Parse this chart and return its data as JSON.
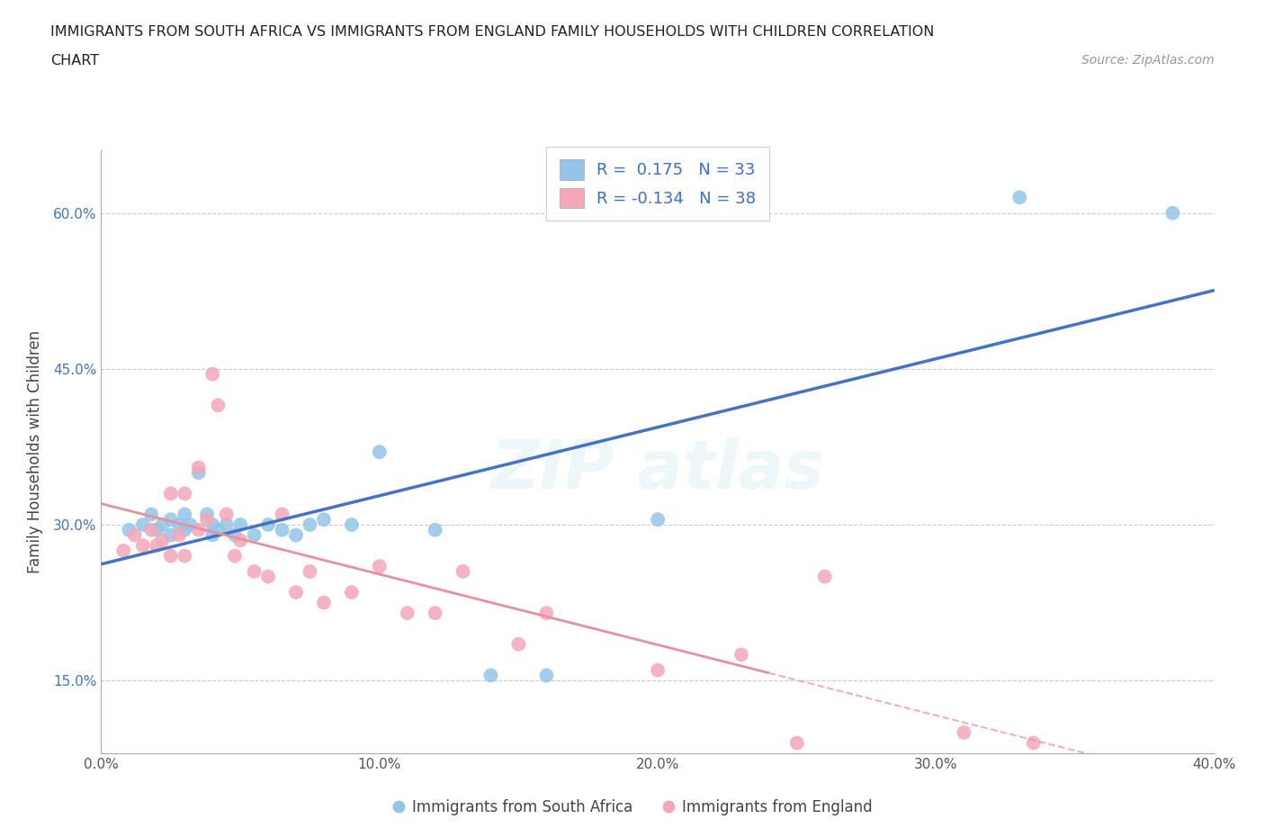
{
  "title_line1": "IMMIGRANTS FROM SOUTH AFRICA VS IMMIGRANTS FROM ENGLAND FAMILY HOUSEHOLDS WITH CHILDREN CORRELATION",
  "title_line2": "CHART",
  "source": "Source: ZipAtlas.com",
  "ylabel": "Family Households with Children",
  "xlim": [
    0.0,
    0.4
  ],
  "ylim": [
    0.08,
    0.66
  ],
  "yticks": [
    0.15,
    0.3,
    0.45,
    0.6
  ],
  "ytick_labels": [
    "15.0%",
    "30.0%",
    "45.0%",
    "60.0%"
  ],
  "xticks": [
    0.0,
    0.1,
    0.2,
    0.3,
    0.4
  ],
  "xtick_labels": [
    "0.0%",
    "10.0%",
    "20.0%",
    "30.0%",
    "40.0%"
  ],
  "blue_R": 0.175,
  "blue_N": 33,
  "pink_R": -0.134,
  "pink_N": 38,
  "blue_color": "#92C5E8",
  "pink_color": "#F4A7B9",
  "blue_line_color": "#4472C4",
  "pink_line_color": "#E8909E",
  "background_color": "#FFFFFF",
  "grid_color": "#CCCCCC",
  "blue_scatter_x": [
    0.01,
    0.015,
    0.018,
    0.02,
    0.022,
    0.025,
    0.025,
    0.028,
    0.03,
    0.03,
    0.032,
    0.035,
    0.038,
    0.04,
    0.04,
    0.042,
    0.045,
    0.048,
    0.05,
    0.055,
    0.06,
    0.065,
    0.07,
    0.075,
    0.08,
    0.09,
    0.1,
    0.12,
    0.14,
    0.16,
    0.2,
    0.33,
    0.385
  ],
  "blue_scatter_y": [
    0.295,
    0.3,
    0.31,
    0.295,
    0.3,
    0.305,
    0.29,
    0.3,
    0.295,
    0.31,
    0.3,
    0.35,
    0.31,
    0.3,
    0.29,
    0.295,
    0.3,
    0.29,
    0.3,
    0.29,
    0.3,
    0.295,
    0.29,
    0.3,
    0.305,
    0.3,
    0.37,
    0.295,
    0.155,
    0.155,
    0.305,
    0.615,
    0.6
  ],
  "pink_scatter_x": [
    0.008,
    0.012,
    0.015,
    0.018,
    0.02,
    0.022,
    0.025,
    0.025,
    0.028,
    0.03,
    0.03,
    0.035,
    0.035,
    0.038,
    0.04,
    0.042,
    0.045,
    0.048,
    0.05,
    0.055,
    0.06,
    0.065,
    0.07,
    0.075,
    0.08,
    0.09,
    0.1,
    0.11,
    0.12,
    0.13,
    0.15,
    0.16,
    0.2,
    0.23,
    0.25,
    0.26,
    0.31,
    0.335
  ],
  "pink_scatter_y": [
    0.275,
    0.29,
    0.28,
    0.295,
    0.28,
    0.285,
    0.33,
    0.27,
    0.29,
    0.33,
    0.27,
    0.355,
    0.295,
    0.305,
    0.445,
    0.415,
    0.31,
    0.27,
    0.285,
    0.255,
    0.25,
    0.31,
    0.235,
    0.255,
    0.225,
    0.235,
    0.26,
    0.215,
    0.215,
    0.255,
    0.185,
    0.215,
    0.16,
    0.175,
    0.09,
    0.25,
    0.1,
    0.09
  ]
}
